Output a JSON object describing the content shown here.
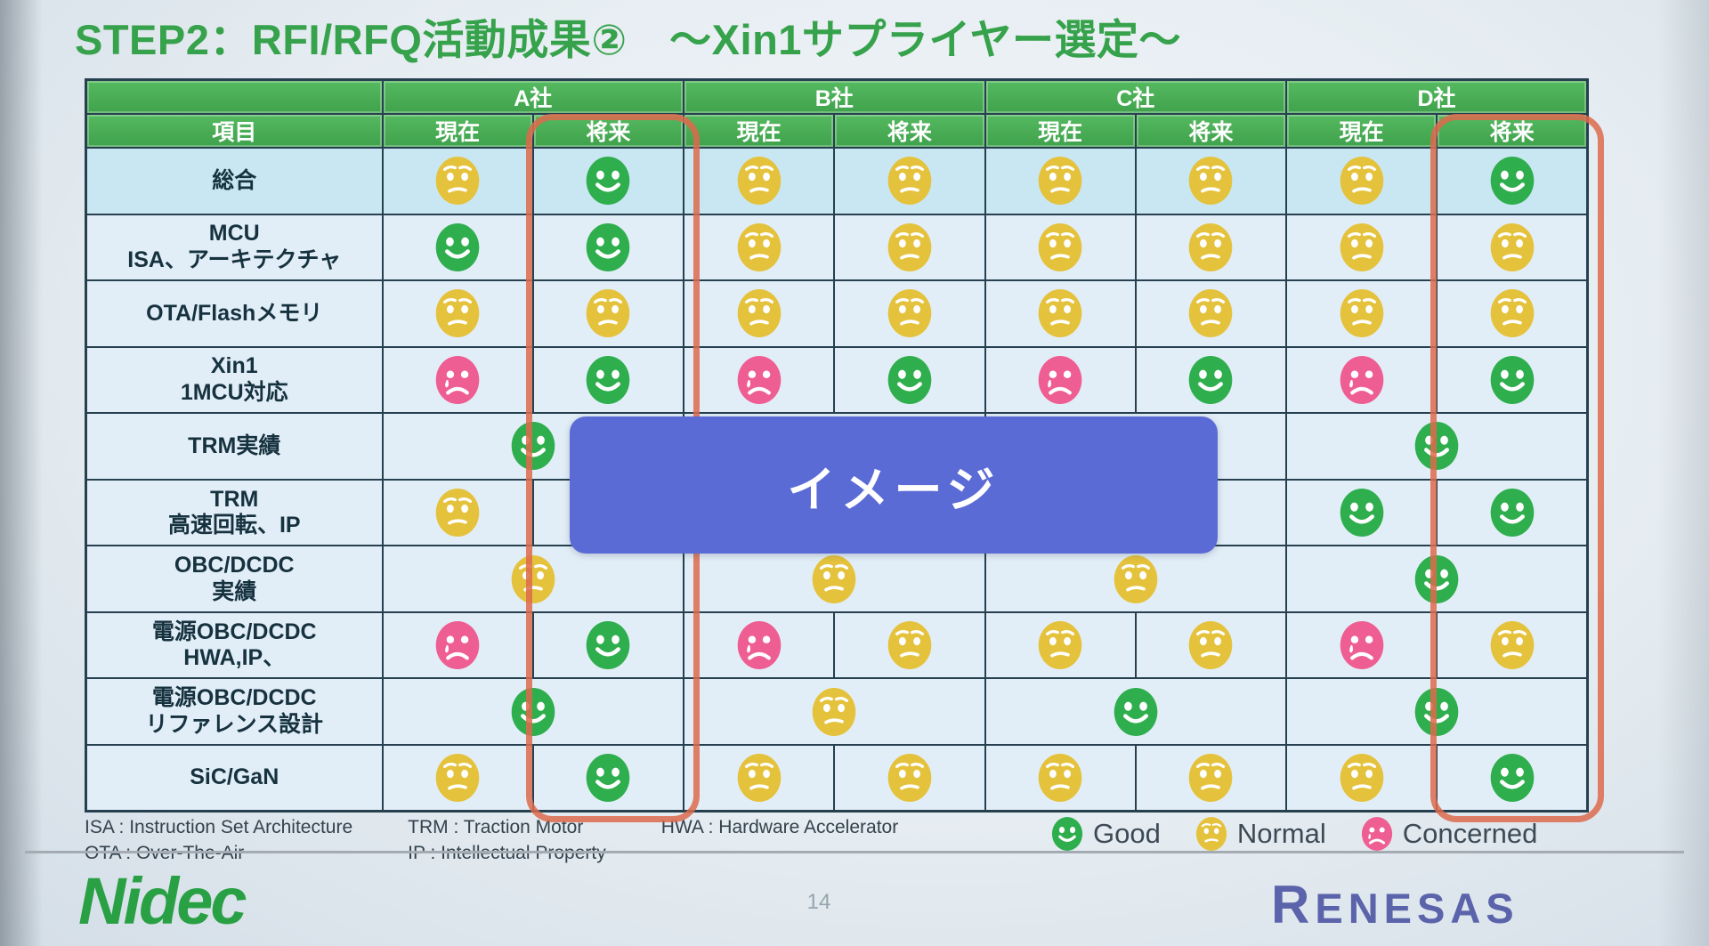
{
  "title": "STEP2：RFI/RFQ活動成果②　～Xin1サプライヤー選定～",
  "table": {
    "item_header": "項目",
    "companies": [
      "A社",
      "B社",
      "C社",
      "D社"
    ],
    "sub_headers": [
      "現在",
      "将来"
    ],
    "highlighted_columns": [
      "A社-将来",
      "D社-将来"
    ],
    "highlight_border_color": "#dd6a4c",
    "rows": [
      {
        "label": "総合",
        "highlight": true,
        "merged": false,
        "cells": [
          [
            "normal",
            "good"
          ],
          [
            "normal",
            "normal"
          ],
          [
            "normal",
            "normal"
          ],
          [
            "normal",
            "good"
          ]
        ]
      },
      {
        "label": "MCU\nISA、アーキテクチャ",
        "highlight": false,
        "merged": false,
        "cells": [
          [
            "good",
            "good"
          ],
          [
            "normal",
            "normal"
          ],
          [
            "normal",
            "normal"
          ],
          [
            "normal",
            "normal"
          ]
        ]
      },
      {
        "label": "OTA/Flashメモリ",
        "highlight": false,
        "merged": false,
        "cells": [
          [
            "normal",
            "normal"
          ],
          [
            "normal",
            "normal"
          ],
          [
            "normal",
            "normal"
          ],
          [
            "normal",
            "normal"
          ]
        ]
      },
      {
        "label": "Xin1\n1MCU対応",
        "highlight": false,
        "merged": false,
        "cells": [
          [
            "concerned",
            "good"
          ],
          [
            "concerned",
            "good"
          ],
          [
            "concerned",
            "good"
          ],
          [
            "concerned",
            "good"
          ]
        ]
      },
      {
        "label": "TRM実績",
        "highlight": false,
        "merged": true,
        "cells": [
          [
            "good"
          ],
          [
            null
          ],
          [
            null
          ],
          [
            "good"
          ]
        ]
      },
      {
        "label": "TRM\n高速回転、IP",
        "highlight": false,
        "merged": false,
        "cells": [
          [
            "normal",
            null
          ],
          [
            null,
            null
          ],
          [
            null,
            null
          ],
          [
            "good",
            "good"
          ]
        ]
      },
      {
        "label": "OBC/DCDC\n実績",
        "highlight": false,
        "merged": true,
        "cells": [
          [
            "normal"
          ],
          [
            "normal"
          ],
          [
            "normal"
          ],
          [
            "good"
          ]
        ]
      },
      {
        "label": "電源OBC/DCDC\nHWA,IP、",
        "highlight": false,
        "merged": false,
        "cells": [
          [
            "concerned",
            "good"
          ],
          [
            "concerned",
            "normal"
          ],
          [
            "normal",
            "normal"
          ],
          [
            "concerned",
            "normal"
          ]
        ]
      },
      {
        "label": "電源OBC/DCDC\nリファレンス設計",
        "highlight": false,
        "merged": true,
        "cells": [
          [
            "good"
          ],
          [
            "normal"
          ],
          [
            "good"
          ],
          [
            "good"
          ]
        ]
      },
      {
        "label": "SiC/GaN",
        "highlight": false,
        "merged": false,
        "cells": [
          [
            "normal",
            "good"
          ],
          [
            "normal",
            "normal"
          ],
          [
            "normal",
            "normal"
          ],
          [
            "normal",
            "good"
          ]
        ]
      }
    ]
  },
  "faces": {
    "good": "#2fae4e",
    "normal": "#e5c23c",
    "concerned": "#ee5e92"
  },
  "overlay": {
    "label": "イメージ",
    "color": "#5b6bd5"
  },
  "notes": {
    "columns": [
      [
        "ISA : Instruction Set Architecture",
        "OTA : Over-The-Air"
      ],
      [
        "TRM : Traction Motor",
        "IP : Intellectual Property"
      ],
      [
        "HWA : Hardware Accelerator"
      ]
    ]
  },
  "legend": {
    "items": [
      {
        "type": "good",
        "label": "Good"
      },
      {
        "type": "normal",
        "label": "Normal"
      },
      {
        "type": "concerned",
        "label": "Concerned"
      }
    ]
  },
  "footer": {
    "page": "14",
    "nidec": "Nidec",
    "renesas": "RENESAS"
  }
}
